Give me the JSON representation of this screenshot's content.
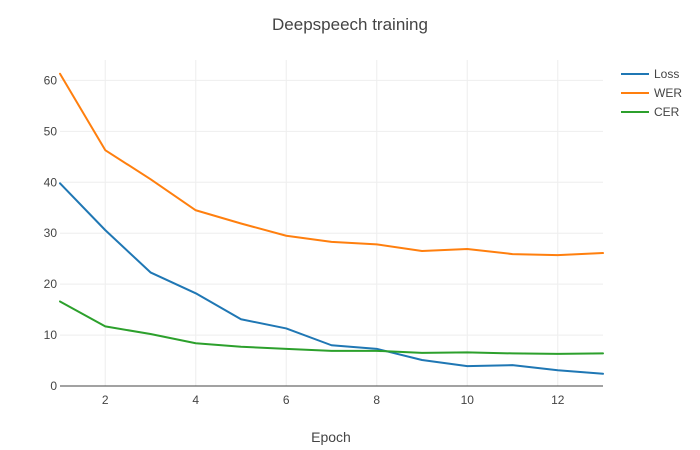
{
  "chart_data": {
    "type": "line",
    "title": "Deepspeech training",
    "xlabel": "Epoch",
    "ylabel": "",
    "xlim": [
      1,
      13
    ],
    "ylim": [
      0,
      64
    ],
    "x_ticks": [
      2,
      4,
      6,
      8,
      10,
      12
    ],
    "y_ticks": [
      0,
      10,
      20,
      30,
      40,
      50,
      60
    ],
    "grid": true,
    "legend_position": "top-right",
    "x": [
      1,
      2,
      3,
      4,
      5,
      6,
      7,
      8,
      9,
      10,
      11,
      12,
      13
    ],
    "series": [
      {
        "name": "Loss",
        "color": "#1f77b4",
        "values": [
          39.8,
          30.6,
          22.3,
          18.2,
          13.1,
          11.3,
          8.0,
          7.3,
          5.1,
          3.9,
          4.1,
          3.1,
          2.4
        ]
      },
      {
        "name": "WER",
        "color": "#ff7f0e",
        "values": [
          61.3,
          46.3,
          40.6,
          34.5,
          31.9,
          29.5,
          28.3,
          27.8,
          26.5,
          26.9,
          25.9,
          25.7,
          26.1
        ]
      },
      {
        "name": "CER",
        "color": "#2ca02c",
        "values": [
          16.6,
          11.7,
          10.2,
          8.4,
          7.7,
          7.3,
          6.9,
          6.9,
          6.5,
          6.6,
          6.4,
          6.3,
          6.4
        ]
      }
    ]
  }
}
